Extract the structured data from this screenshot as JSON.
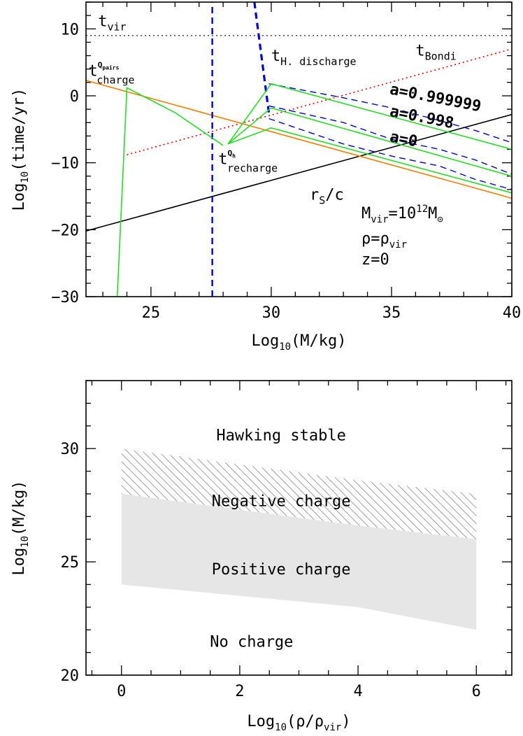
{
  "chart_data": [
    {
      "type": "line",
      "xlabel": "Log10(M/kg)",
      "ylabel": "Log10(time/yr)",
      "xlim": [
        22.3,
        40
      ],
      "ylim": [
        -30,
        14
      ],
      "xticks": [
        25,
        30,
        35,
        40
      ],
      "yticks": [
        -30,
        -20,
        -10,
        0,
        10
      ],
      "colors": {
        "t_vir": "#555555",
        "bondi": "#e00000",
        "discharge": "#0000d0",
        "pairs": "#f08000",
        "recharge": "#22dd22",
        "light": "#000000"
      },
      "series": [
        {
          "name": "t_vir",
          "style": "dotted",
          "color": "#555555",
          "x": [
            22.3,
            40
          ],
          "y": [
            9,
            9
          ]
        },
        {
          "name": "t_Bondi",
          "style": "dotted",
          "color": "#e00000",
          "x": [
            24,
            40
          ],
          "y": [
            -8.8,
            7.0
          ]
        },
        {
          "name": "r_s/c",
          "style": "solid",
          "color": "#000000",
          "x": [
            22.3,
            40
          ],
          "y": [
            -20.2,
            -2.8
          ]
        },
        {
          "name": "t_charge^Q_pairs",
          "style": "solid",
          "color": "#f08000",
          "x": [
            22.3,
            40
          ],
          "y": [
            2.3,
            -15.3
          ]
        },
        {
          "name": "t_H. discharge (steep)",
          "style": "dashed",
          "color": "#0000d0",
          "x": [
            27.55,
            27.55
          ],
          "y": [
            -30,
            14
          ]
        },
        {
          "name": "t_H. discharge (steep 2)",
          "style": "dashed",
          "color": "#0000d0",
          "x": [
            29.3,
            29.9
          ],
          "y": [
            14,
            -2.5
          ]
        },
        {
          "name": "a=0.999999 discharge",
          "style": "dashed",
          "color": "#0000d0",
          "x": [
            29.9,
            33,
            35,
            37,
            38.5,
            40
          ],
          "y": [
            1.8,
            -0.3,
            -1.8,
            -3.7,
            -5.2,
            -7.0
          ]
        },
        {
          "name": "a=0.998 discharge",
          "style": "dashed",
          "color": "#0000d0",
          "x": [
            29.9,
            33,
            35,
            37,
            38.5,
            40
          ],
          "y": [
            -1.5,
            -4.0,
            -6.5,
            -8.0,
            -9.6,
            -11.7
          ]
        },
        {
          "name": "a=0 discharge",
          "style": "dashed",
          "color": "#0000d0",
          "x": [
            29.9,
            33,
            35,
            37,
            38.5,
            40
          ],
          "y": [
            -3.4,
            -7.2,
            -9.0,
            -10.5,
            -12.5,
            -14.0
          ]
        },
        {
          "name": "a=0.999999 recharge",
          "style": "solid",
          "color": "#22dd22",
          "x": [
            28.2,
            30,
            40
          ],
          "y": [
            -7.2,
            1.8,
            -8.0
          ]
        },
        {
          "name": "a=0.998 recharge",
          "style": "solid",
          "color": "#22dd22",
          "x": [
            28.2,
            30,
            40
          ],
          "y": [
            -7.2,
            -1.8,
            -12.0
          ]
        },
        {
          "name": "a=0 recharge",
          "style": "solid",
          "color": "#22dd22",
          "x": [
            28.2,
            30,
            40
          ],
          "y": [
            -7.2,
            -4.8,
            -14.5
          ]
        },
        {
          "name": "t_recharge^Q_h",
          "style": "solid",
          "color": "#22dd22",
          "x": [
            23.6,
            24.0,
            26.0,
            28.0
          ],
          "y": [
            -30,
            1.2,
            -2.5,
            -7.4
          ]
        }
      ],
      "annotations": [
        {
          "text": "t",
          "sub": "vir",
          "color": "#000000",
          "x": 22.8,
          "y": 10.4
        },
        {
          "text": "t",
          "sub": "Bondi",
          "color": "#e00000",
          "x": 36.0,
          "y": 6.0
        },
        {
          "text": "t",
          "sub": "H. discharge",
          "color": "#0000d0",
          "x": 30.0,
          "y": 5.2
        },
        {
          "text": "t",
          "sup": "Q",
          "supsub": "pairs",
          "sub": "charge",
          "color": "#f08000",
          "x": 22.4,
          "y": 3.0
        },
        {
          "text": "t",
          "sup": "Q",
          "supsub": "h",
          "sub": "recharge",
          "color": "#22dd22",
          "x": 27.8,
          "y": -10.2
        },
        {
          "text": "r",
          "sub": "S",
          "after": "/c",
          "color": "#000000",
          "x": 31.6,
          "y": -15.5
        },
        {
          "text": "a=0.999999",
          "color": "#000000",
          "x": 34.9,
          "y": 0.3,
          "rot": 11
        },
        {
          "text": "a=0.998",
          "color": "#000000",
          "x": 34.9,
          "y": -3.0,
          "rot": 11
        },
        {
          "text": "a=0",
          "color": "#000000",
          "x": 34.9,
          "y": -6.8,
          "rot": 11
        }
      ],
      "params": [
        "M_vir=10^12 M_⊙",
        "ρ=ρ_vir",
        "z=0"
      ]
    },
    {
      "type": "area",
      "xlabel": "Log10(ρ/ρ_vir)",
      "ylabel": "Log10(M/kg)",
      "xlim": [
        -0.6,
        6.6
      ],
      "ylim": [
        20,
        33
      ],
      "xticks": [
        0,
        2,
        4,
        6
      ],
      "yticks": [
        20,
        25,
        30
      ],
      "regions": [
        {
          "name": "Negative charge",
          "fill": "hatched",
          "x": [
            0,
            4,
            6
          ],
          "upper": [
            30,
            28.6,
            28
          ],
          "lower": [
            28,
            26.6,
            26
          ]
        },
        {
          "name": "Positive charge",
          "fill": "#e6e6e6",
          "x": [
            0,
            4,
            6
          ],
          "upper": [
            28,
            26.6,
            26
          ],
          "lower": [
            24,
            23.0,
            22
          ]
        }
      ],
      "labels": [
        {
          "text": "Hawking stable",
          "x": 2.7,
          "y": 30.6
        },
        {
          "text": "Negative charge",
          "x": 2.7,
          "y": 27.7
        },
        {
          "text": "Positive charge",
          "x": 2.7,
          "y": 24.7
        },
        {
          "text": "No charge",
          "x": 2.2,
          "y": 21.5
        }
      ]
    }
  ]
}
